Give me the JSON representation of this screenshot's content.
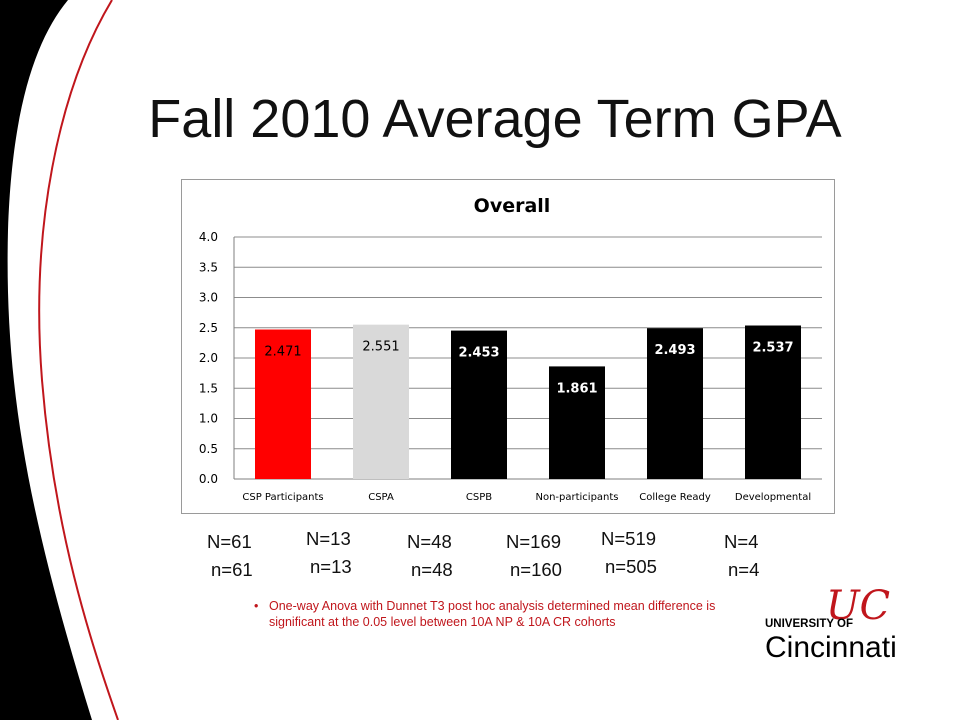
{
  "slide": {
    "title": "Fall 2010 Average Term GPA",
    "footnote": "One-way Anova with Dunnet T3 post hoc analysis determined mean difference is significant at the 0.05 level between 10A NP & 10A CR cohorts",
    "logo": {
      "top_text": "UNIVERSITY OF",
      "main_text": "Cincinnati",
      "mark": "UC",
      "brand_color": "#c0161c"
    }
  },
  "sample_sizes": [
    {
      "N": "N=61",
      "n": "n=61"
    },
    {
      "N": "N=13",
      "n": "n=13"
    },
    {
      "N": "N=48",
      "n": "n=48"
    },
    {
      "N": "N=169",
      "n": "n=160"
    },
    {
      "N": "N=519",
      "n": "n=505"
    },
    {
      "N": "N=4",
      "n": "n=4"
    }
  ],
  "chart_data": {
    "type": "bar",
    "title": "Overall",
    "categories": [
      "CSP Participants",
      "CSPA",
      "CSPB",
      "Non-participants",
      "College Ready",
      "Developmental"
    ],
    "values": [
      2.471,
      2.551,
      2.453,
      1.861,
      2.493,
      2.537
    ],
    "data_labels": [
      "2.471",
      "2.551",
      "2.453",
      "1.861",
      "2.493",
      "2.537"
    ],
    "bar_colors": [
      "#ff0000",
      "#d9d9d9",
      "#000000",
      "#000000",
      "#000000",
      "#000000"
    ],
    "label_colors": [
      "#000000",
      "#000000",
      "#ffffff",
      "#ffffff",
      "#ffffff",
      "#ffffff"
    ],
    "ylim": [
      0,
      4
    ],
    "yticks": [
      0,
      0.5,
      1.0,
      1.5,
      2.0,
      2.5,
      3.0,
      3.5,
      4.0
    ],
    "ytick_labels": [
      "0.0",
      "0.5",
      "1.0",
      "1.5",
      "2.0",
      "2.5",
      "3.0",
      "3.5",
      "4.0"
    ],
    "grid": true,
    "legend": "none"
  }
}
